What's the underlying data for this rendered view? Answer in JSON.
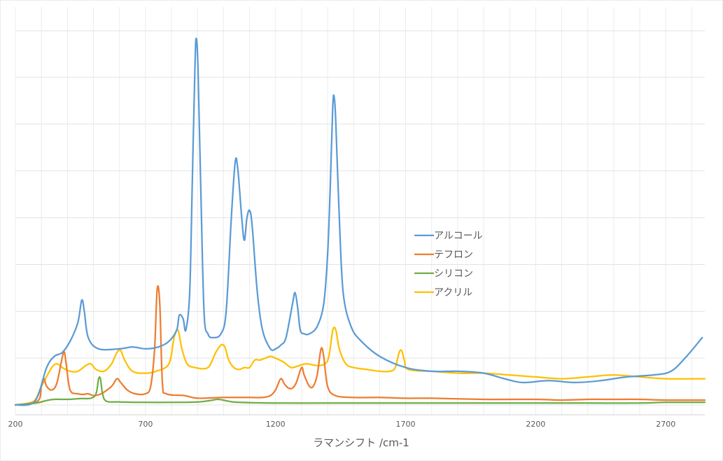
{
  "chart_data": {
    "type": "line",
    "title": "",
    "xlabel": "ラマンシフト /cm-1",
    "ylabel": "",
    "xlim": [
      200,
      2850
    ],
    "ylim": [
      0,
      1
    ],
    "x_ticks": [
      200,
      700,
      1200,
      1700,
      2200,
      2700
    ],
    "y_gridlines": 8,
    "y_tick_labels_shown": false,
    "grid": true,
    "legend": "center-right",
    "series": [
      {
        "name": "アルコール",
        "color": "#5B9BD5",
        "points": [
          [
            200,
            0.0
          ],
          [
            275,
            0.01
          ],
          [
            320,
            0.1
          ],
          [
            350,
            0.13
          ],
          [
            380,
            0.14
          ],
          [
            410,
            0.17
          ],
          [
            440,
            0.22
          ],
          [
            455,
            0.28
          ],
          [
            465,
            0.25
          ],
          [
            480,
            0.18
          ],
          [
            520,
            0.15
          ],
          [
            600,
            0.15
          ],
          [
            650,
            0.155
          ],
          [
            700,
            0.15
          ],
          [
            750,
            0.155
          ],
          [
            790,
            0.17
          ],
          [
            820,
            0.2
          ],
          [
            830,
            0.24
          ],
          [
            845,
            0.23
          ],
          [
            855,
            0.2
          ],
          [
            870,
            0.3
          ],
          [
            880,
            0.6
          ],
          [
            890,
            0.9
          ],
          [
            895,
            0.98
          ],
          [
            902,
            0.9
          ],
          [
            912,
            0.6
          ],
          [
            925,
            0.25
          ],
          [
            940,
            0.19
          ],
          [
            960,
            0.18
          ],
          [
            990,
            0.19
          ],
          [
            1010,
            0.25
          ],
          [
            1030,
            0.5
          ],
          [
            1045,
            0.65
          ],
          [
            1055,
            0.63
          ],
          [
            1070,
            0.5
          ],
          [
            1080,
            0.44
          ],
          [
            1090,
            0.5
          ],
          [
            1100,
            0.52
          ],
          [
            1110,
            0.48
          ],
          [
            1130,
            0.3
          ],
          [
            1150,
            0.2
          ],
          [
            1180,
            0.15
          ],
          [
            1200,
            0.15
          ],
          [
            1220,
            0.16
          ],
          [
            1240,
            0.18
          ],
          [
            1265,
            0.27
          ],
          [
            1275,
            0.3
          ],
          [
            1285,
            0.26
          ],
          [
            1295,
            0.2
          ],
          [
            1310,
            0.19
          ],
          [
            1330,
            0.19
          ],
          [
            1360,
            0.21
          ],
          [
            1385,
            0.27
          ],
          [
            1400,
            0.4
          ],
          [
            1410,
            0.58
          ],
          [
            1420,
            0.8
          ],
          [
            1426,
            0.82
          ],
          [
            1432,
            0.75
          ],
          [
            1445,
            0.5
          ],
          [
            1460,
            0.3
          ],
          [
            1490,
            0.21
          ],
          [
            1530,
            0.17
          ],
          [
            1600,
            0.13
          ],
          [
            1700,
            0.1
          ],
          [
            1800,
            0.09
          ],
          [
            1900,
            0.09
          ],
          [
            2000,
            0.085
          ],
          [
            2080,
            0.07
          ],
          [
            2150,
            0.06
          ],
          [
            2250,
            0.065
          ],
          [
            2350,
            0.06
          ],
          [
            2450,
            0.065
          ],
          [
            2550,
            0.075
          ],
          [
            2650,
            0.08
          ],
          [
            2720,
            0.09
          ],
          [
            2780,
            0.13
          ],
          [
            2840,
            0.18
          ]
        ]
      },
      {
        "name": "テフロン",
        "color": "#ED7D31",
        "points": [
          [
            200,
            0.0
          ],
          [
            285,
            0.01
          ],
          [
            300,
            0.05
          ],
          [
            310,
            0.07
          ],
          [
            320,
            0.05
          ],
          [
            340,
            0.04
          ],
          [
            360,
            0.06
          ],
          [
            385,
            0.14
          ],
          [
            395,
            0.11
          ],
          [
            410,
            0.04
          ],
          [
            440,
            0.03
          ],
          [
            460,
            0.028
          ],
          [
            480,
            0.03
          ],
          [
            500,
            0.025
          ],
          [
            530,
            0.03
          ],
          [
            570,
            0.05
          ],
          [
            590,
            0.07
          ],
          [
            605,
            0.06
          ],
          [
            630,
            0.04
          ],
          [
            660,
            0.03
          ],
          [
            700,
            0.03
          ],
          [
            720,
            0.05
          ],
          [
            735,
            0.15
          ],
          [
            745,
            0.31
          ],
          [
            755,
            0.27
          ],
          [
            765,
            0.06
          ],
          [
            780,
            0.03
          ],
          [
            850,
            0.025
          ],
          [
            900,
            0.018
          ],
          [
            1000,
            0.02
          ],
          [
            1050,
            0.02
          ],
          [
            1100,
            0.02
          ],
          [
            1150,
            0.02
          ],
          [
            1180,
            0.025
          ],
          [
            1200,
            0.04
          ],
          [
            1220,
            0.07
          ],
          [
            1235,
            0.055
          ],
          [
            1250,
            0.045
          ],
          [
            1265,
            0.045
          ],
          [
            1280,
            0.06
          ],
          [
            1300,
            0.1
          ],
          [
            1310,
            0.08
          ],
          [
            1330,
            0.05
          ],
          [
            1345,
            0.05
          ],
          [
            1360,
            0.08
          ],
          [
            1375,
            0.15
          ],
          [
            1385,
            0.13
          ],
          [
            1400,
            0.05
          ],
          [
            1430,
            0.025
          ],
          [
            1500,
            0.02
          ],
          [
            1600,
            0.02
          ],
          [
            1700,
            0.018
          ],
          [
            1800,
            0.018
          ],
          [
            2000,
            0.015
          ],
          [
            2200,
            0.015
          ],
          [
            2300,
            0.013
          ],
          [
            2400,
            0.015
          ],
          [
            2500,
            0.015
          ],
          [
            2600,
            0.015
          ],
          [
            2700,
            0.013
          ],
          [
            2850,
            0.013
          ]
        ]
      },
      {
        "name": "シリコン",
        "color": "#70AD47",
        "points": [
          [
            200,
            0.0
          ],
          [
            280,
            0.005
          ],
          [
            320,
            0.012
          ],
          [
            350,
            0.015
          ],
          [
            400,
            0.015
          ],
          [
            450,
            0.017
          ],
          [
            490,
            0.018
          ],
          [
            510,
            0.03
          ],
          [
            520,
            0.07
          ],
          [
            527,
            0.07
          ],
          [
            535,
            0.03
          ],
          [
            550,
            0.01
          ],
          [
            600,
            0.008
          ],
          [
            700,
            0.007
          ],
          [
            800,
            0.007
          ],
          [
            900,
            0.008
          ],
          [
            950,
            0.012
          ],
          [
            980,
            0.015
          ],
          [
            1020,
            0.01
          ],
          [
            1060,
            0.007
          ],
          [
            1200,
            0.005
          ],
          [
            1400,
            0.005
          ],
          [
            1600,
            0.005
          ],
          [
            1800,
            0.005
          ],
          [
            2000,
            0.005
          ],
          [
            2200,
            0.005
          ],
          [
            2400,
            0.005
          ],
          [
            2600,
            0.005
          ],
          [
            2700,
            0.007
          ],
          [
            2850,
            0.007
          ]
        ]
      },
      {
        "name": "アクリル",
        "color": "#FFC000",
        "points": [
          [
            200,
            0.0
          ],
          [
            270,
            0.01
          ],
          [
            300,
            0.05
          ],
          [
            340,
            0.1
          ],
          [
            360,
            0.11
          ],
          [
            380,
            0.1
          ],
          [
            410,
            0.09
          ],
          [
            440,
            0.09
          ],
          [
            470,
            0.105
          ],
          [
            490,
            0.11
          ],
          [
            510,
            0.095
          ],
          [
            540,
            0.09
          ],
          [
            570,
            0.11
          ],
          [
            590,
            0.14
          ],
          [
            605,
            0.145
          ],
          [
            620,
            0.12
          ],
          [
            650,
            0.09
          ],
          [
            700,
            0.085
          ],
          [
            740,
            0.09
          ],
          [
            790,
            0.11
          ],
          [
            810,
            0.18
          ],
          [
            825,
            0.2
          ],
          [
            840,
            0.15
          ],
          [
            860,
            0.11
          ],
          [
            890,
            0.1
          ],
          [
            940,
            0.1
          ],
          [
            970,
            0.14
          ],
          [
            990,
            0.16
          ],
          [
            1005,
            0.155
          ],
          [
            1020,
            0.12
          ],
          [
            1040,
            0.1
          ],
          [
            1060,
            0.095
          ],
          [
            1080,
            0.1
          ],
          [
            1100,
            0.1
          ],
          [
            1120,
            0.12
          ],
          [
            1140,
            0.12
          ],
          [
            1160,
            0.125
          ],
          [
            1180,
            0.13
          ],
          [
            1200,
            0.125
          ],
          [
            1230,
            0.115
          ],
          [
            1260,
            0.1
          ],
          [
            1290,
            0.105
          ],
          [
            1320,
            0.11
          ],
          [
            1360,
            0.105
          ],
          [
            1390,
            0.11
          ],
          [
            1405,
            0.13
          ],
          [
            1420,
            0.2
          ],
          [
            1432,
            0.2
          ],
          [
            1445,
            0.15
          ],
          [
            1470,
            0.11
          ],
          [
            1500,
            0.1
          ],
          [
            1550,
            0.095
          ],
          [
            1600,
            0.09
          ],
          [
            1640,
            0.09
          ],
          [
            1660,
            0.1
          ],
          [
            1675,
            0.14
          ],
          [
            1685,
            0.145
          ],
          [
            1695,
            0.12
          ],
          [
            1710,
            0.095
          ],
          [
            1800,
            0.09
          ],
          [
            1900,
            0.085
          ],
          [
            2000,
            0.085
          ],
          [
            2100,
            0.08
          ],
          [
            2200,
            0.075
          ],
          [
            2300,
            0.07
          ],
          [
            2400,
            0.075
          ],
          [
            2500,
            0.08
          ],
          [
            2600,
            0.075
          ],
          [
            2700,
            0.07
          ],
          [
            2850,
            0.07
          ]
        ]
      }
    ]
  }
}
